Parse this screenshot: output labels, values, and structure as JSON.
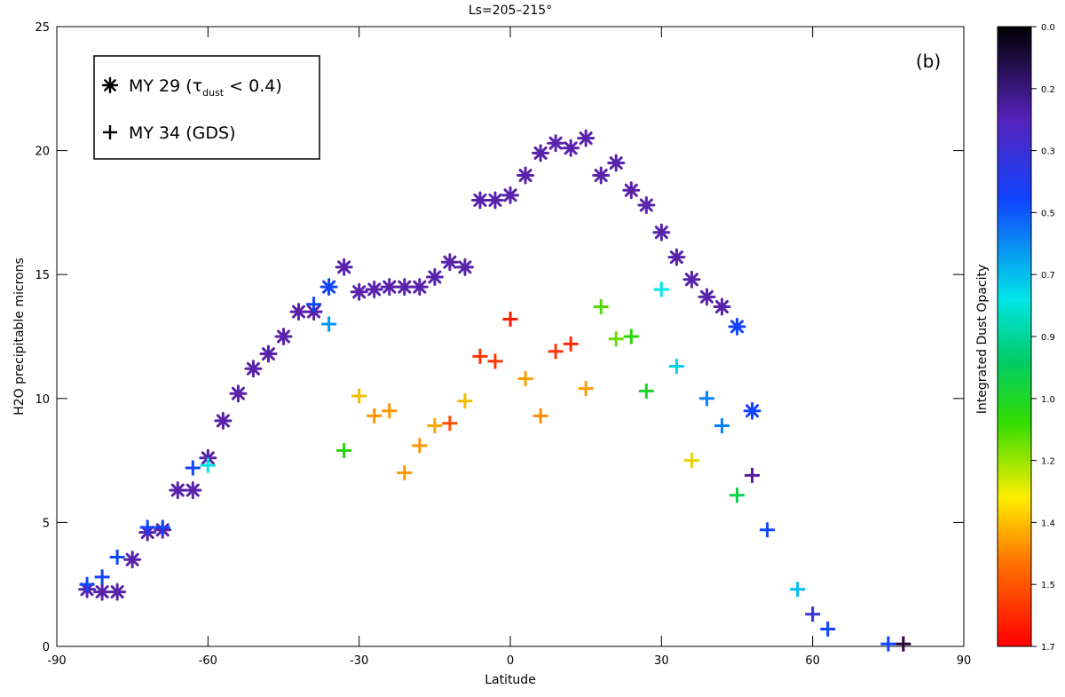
{
  "chart_data": {
    "type": "scatter",
    "title": "Ls=205–215°",
    "panel_label": "(b)",
    "xlabel": "Latitude",
    "ylabel": "H2O precipitable microns",
    "xlim": [
      -90,
      90
    ],
    "ylim": [
      0,
      25
    ],
    "x_ticks": [
      -90,
      -60,
      -30,
      0,
      30,
      60,
      90
    ],
    "y_ticks": [
      0,
      5,
      10,
      15,
      20,
      25
    ],
    "colorbar": {
      "label": "Integrated Dust Opacity",
      "range": [
        0.0,
        1.7
      ],
      "ticks": [
        "0.0",
        "0.2",
        "0.3",
        "0.5",
        "0.7",
        "0.9",
        "1.0",
        "1.2",
        "1.4",
        "1.5",
        "1.7"
      ]
    },
    "legend": {
      "position": "top-left",
      "entries": [
        {
          "marker": "asterisk",
          "label_main": "MY 29 (τ",
          "label_sub": "dust",
          "label_end": " < 0.4)"
        },
        {
          "marker": "plus",
          "label_main": "MY 34 (GDS)",
          "label_sub": "",
          "label_end": ""
        }
      ]
    },
    "series": [
      {
        "name": "MY 29 (τdust < 0.4)",
        "marker": "asterisk",
        "points": [
          {
            "x": -84,
            "y": 2.3,
            "c": 0.2
          },
          {
            "x": -81,
            "y": 2.2,
            "c": 0.2
          },
          {
            "x": -78,
            "y": 2.2,
            "c": 0.2
          },
          {
            "x": -75,
            "y": 3.5,
            "c": 0.2
          },
          {
            "x": -72,
            "y": 4.6,
            "c": 0.2
          },
          {
            "x": -69,
            "y": 4.7,
            "c": 0.2
          },
          {
            "x": -66,
            "y": 6.3,
            "c": 0.2
          },
          {
            "x": -63,
            "y": 6.3,
            "c": 0.2
          },
          {
            "x": -60,
            "y": 7.6,
            "c": 0.2
          },
          {
            "x": -57,
            "y": 9.1,
            "c": 0.2
          },
          {
            "x": -54,
            "y": 10.2,
            "c": 0.2
          },
          {
            "x": -51,
            "y": 11.2,
            "c": 0.2
          },
          {
            "x": -48,
            "y": 11.8,
            "c": 0.2
          },
          {
            "x": -45,
            "y": 12.5,
            "c": 0.2
          },
          {
            "x": -42,
            "y": 13.5,
            "c": 0.2
          },
          {
            "x": -39,
            "y": 13.5,
            "c": 0.2
          },
          {
            "x": -36,
            "y": 14.5,
            "c": 0.3
          },
          {
            "x": -33,
            "y": 15.3,
            "c": 0.2
          },
          {
            "x": -30,
            "y": 14.3,
            "c": 0.2
          },
          {
            "x": -27,
            "y": 14.4,
            "c": 0.2
          },
          {
            "x": -24,
            "y": 14.5,
            "c": 0.2
          },
          {
            "x": -21,
            "y": 14.5,
            "c": 0.2
          },
          {
            "x": -18,
            "y": 14.5,
            "c": 0.2
          },
          {
            "x": -15,
            "y": 14.9,
            "c": 0.2
          },
          {
            "x": -12,
            "y": 15.5,
            "c": 0.2
          },
          {
            "x": -9,
            "y": 15.3,
            "c": 0.2
          },
          {
            "x": -6,
            "y": 18.0,
            "c": 0.2
          },
          {
            "x": -3,
            "y": 18.0,
            "c": 0.2
          },
          {
            "x": 0,
            "y": 18.2,
            "c": 0.2
          },
          {
            "x": 3,
            "y": 19.0,
            "c": 0.2
          },
          {
            "x": 6,
            "y": 19.9,
            "c": 0.2
          },
          {
            "x": 9,
            "y": 20.3,
            "c": 0.2
          },
          {
            "x": 12,
            "y": 20.1,
            "c": 0.2
          },
          {
            "x": 15,
            "y": 20.5,
            "c": 0.2
          },
          {
            "x": 18,
            "y": 19.0,
            "c": 0.2
          },
          {
            "x": 21,
            "y": 19.5,
            "c": 0.2
          },
          {
            "x": 24,
            "y": 18.4,
            "c": 0.2
          },
          {
            "x": 27,
            "y": 17.8,
            "c": 0.2
          },
          {
            "x": 30,
            "y": 16.7,
            "c": 0.2
          },
          {
            "x": 33,
            "y": 15.7,
            "c": 0.2
          },
          {
            "x": 36,
            "y": 14.8,
            "c": 0.2
          },
          {
            "x": 39,
            "y": 14.1,
            "c": 0.2
          },
          {
            "x": 42,
            "y": 13.7,
            "c": 0.2
          },
          {
            "x": 45,
            "y": 12.9,
            "c": 0.3
          },
          {
            "x": 48,
            "y": 9.5,
            "c": 0.3
          }
        ]
      },
      {
        "name": "MY 34 (GDS)",
        "marker": "plus",
        "points": [
          {
            "x": -84,
            "y": 2.5,
            "c": 0.3
          },
          {
            "x": -81,
            "y": 2.8,
            "c": 0.3
          },
          {
            "x": -78,
            "y": 3.6,
            "c": 0.3
          },
          {
            "x": -72,
            "y": 4.8,
            "c": 0.3
          },
          {
            "x": -69,
            "y": 4.8,
            "c": 0.3
          },
          {
            "x": -63,
            "y": 7.2,
            "c": 0.3
          },
          {
            "x": -60,
            "y": 7.3,
            "c": 0.7
          },
          {
            "x": -39,
            "y": 13.8,
            "c": 0.3
          },
          {
            "x": -36,
            "y": 13.0,
            "c": 0.5
          },
          {
            "x": -33,
            "y": 7.9,
            "c": 1.05
          },
          {
            "x": -30,
            "y": 10.1,
            "c": 1.3
          },
          {
            "x": -27,
            "y": 9.3,
            "c": 1.4
          },
          {
            "x": -24,
            "y": 9.5,
            "c": 1.4
          },
          {
            "x": -21,
            "y": 7.0,
            "c": 1.4
          },
          {
            "x": -18,
            "y": 8.1,
            "c": 1.4
          },
          {
            "x": -15,
            "y": 8.9,
            "c": 1.35
          },
          {
            "x": -12,
            "y": 9.0,
            "c": 1.55
          },
          {
            "x": -9,
            "y": 9.9,
            "c": 1.3
          },
          {
            "x": -6,
            "y": 11.7,
            "c": 1.6
          },
          {
            "x": -3,
            "y": 11.5,
            "c": 1.6
          },
          {
            "x": 0,
            "y": 13.2,
            "c": 1.65
          },
          {
            "x": 3,
            "y": 10.8,
            "c": 1.38
          },
          {
            "x": 6,
            "y": 9.3,
            "c": 1.42
          },
          {
            "x": 9,
            "y": 11.9,
            "c": 1.6
          },
          {
            "x": 12,
            "y": 12.2,
            "c": 1.62
          },
          {
            "x": 15,
            "y": 10.4,
            "c": 1.38
          },
          {
            "x": 18,
            "y": 13.7,
            "c": 1.08
          },
          {
            "x": 21,
            "y": 12.4,
            "c": 1.1
          },
          {
            "x": 24,
            "y": 12.5,
            "c": 1.05
          },
          {
            "x": 27,
            "y": 10.3,
            "c": 1.0
          },
          {
            "x": 30,
            "y": 14.4,
            "c": 0.7
          },
          {
            "x": 33,
            "y": 11.3,
            "c": 0.65
          },
          {
            "x": 36,
            "y": 7.5,
            "c": 1.25
          },
          {
            "x": 39,
            "y": 10.0,
            "c": 0.45
          },
          {
            "x": 42,
            "y": 8.9,
            "c": 0.45
          },
          {
            "x": 45,
            "y": 6.1,
            "c": 0.95
          },
          {
            "x": 48,
            "y": 6.9,
            "c": 0.18
          },
          {
            "x": 51,
            "y": 4.7,
            "c": 0.3
          },
          {
            "x": 57,
            "y": 2.3,
            "c": 0.6
          },
          {
            "x": 60,
            "y": 1.3,
            "c": 0.25
          },
          {
            "x": 63,
            "y": 0.7,
            "c": 0.3
          },
          {
            "x": 75,
            "y": 0.1,
            "c": 0.3
          },
          {
            "x": 78,
            "y": 0.1,
            "c": 0.05
          }
        ]
      }
    ]
  }
}
